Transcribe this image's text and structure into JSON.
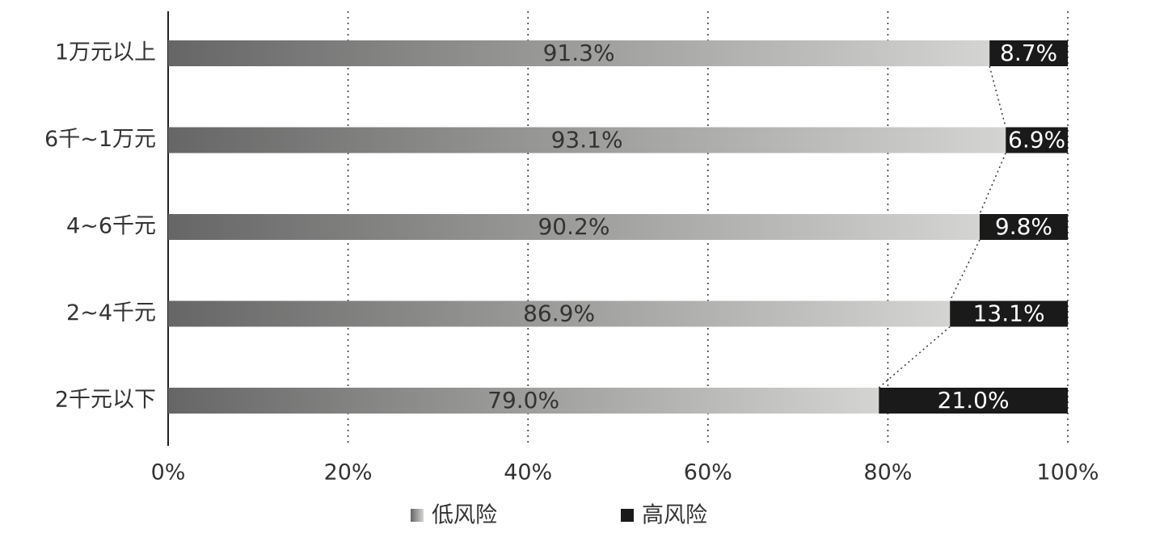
{
  "chart_data": {
    "type": "stacked-bar",
    "orientation": "horizontal",
    "categories": [
      "1万元以上",
      "6千~1万元",
      "4~6千元",
      "2~4千元",
      "2千元以下"
    ],
    "series": [
      {
        "name": "低风险",
        "color": "#666666",
        "values": [
          91.3,
          93.1,
          90.2,
          86.9,
          79.0
        ],
        "value_labels": [
          "91.3%",
          "93.1%",
          "90.2%",
          "86.9%",
          "79.0%"
        ]
      },
      {
        "name": "高风险",
        "color": "#1a1a1a",
        "values": [
          8.7,
          6.9,
          9.8,
          13.1,
          21.0
        ],
        "value_labels": [
          "8.7%",
          "6.9%",
          "9.8%",
          "13.1%",
          "21.0%"
        ]
      }
    ],
    "xlim": [
      0,
      100
    ],
    "xticks": [
      {
        "value": 0,
        "label": "0%"
      },
      {
        "value": 20,
        "label": "20%"
      },
      {
        "value": 40,
        "label": "40%"
      },
      {
        "value": 60,
        "label": "60%"
      },
      {
        "value": 80,
        "label": "80%"
      },
      {
        "value": 100,
        "label": "100%"
      }
    ],
    "grid": true,
    "legend": "bottom"
  }
}
